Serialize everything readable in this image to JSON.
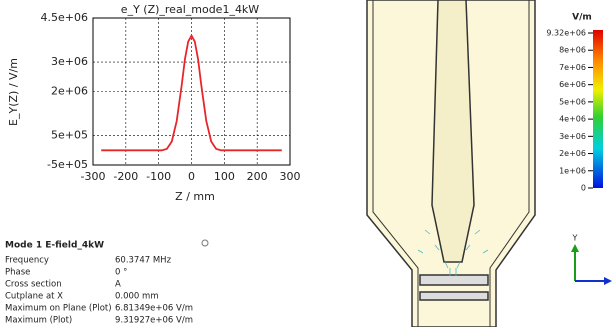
{
  "chart_data": {
    "type": "line",
    "title": "e_Y (Z)_real_mode1_4kW",
    "x_label": "Z / mm",
    "y_label": "E_Y(Z) / V/m",
    "x": [
      -275,
      -200,
      -125,
      -90,
      -75,
      -60,
      -45,
      -30,
      -20,
      -10,
      0,
      10,
      20,
      30,
      45,
      60,
      75,
      90,
      125,
      200,
      275
    ],
    "series": [
      {
        "name": "e_Y (Z)_real_mode1_4kW",
        "color": "#e8262a",
        "values": [
          0,
          0,
          0,
          0,
          50000,
          300000,
          1000000,
          2200000,
          3100000,
          3700000,
          3900000,
          3700000,
          3100000,
          2200000,
          1000000,
          300000,
          50000,
          0,
          0,
          0,
          0
        ]
      }
    ],
    "xlim": [
      -300,
      300
    ],
    "xticks": [
      -300,
      -200,
      -100,
      0,
      100,
      200,
      300
    ],
    "ylim": [
      -500000,
      4500000
    ],
    "yticks": [
      {
        "value": -500000,
        "label": "-5e+05"
      },
      {
        "value": 500000,
        "label": "5e+05"
      },
      {
        "value": 2000000,
        "label": "2e+06"
      },
      {
        "value": 3000000,
        "label": "3e+06"
      },
      {
        "value": 4500000,
        "label": "4.5e+06"
      }
    ],
    "grid": true
  },
  "info_panel": {
    "title": "Mode 1 E-field_4kW",
    "rows": [
      [
        "Frequency",
        "60.3747 MHz"
      ],
      [
        "Phase",
        "0 °"
      ],
      [
        "Cross section",
        "A"
      ],
      [
        "Cutplane at X",
        "0.000 mm"
      ],
      [
        "Maximum on Plane (Plot)",
        "6.81349e+06 V/m"
      ],
      [
        "Maximum (Plot)",
        "9.31927e+06 V/m"
      ]
    ]
  },
  "color_legend": {
    "unit": "V/m",
    "labels": [
      "9.32e+06",
      "8e+06",
      "7e+06",
      "6e+06",
      "5e+06",
      "4e+06",
      "3e+06",
      "2e+06",
      "1e+06",
      "0"
    ]
  },
  "triad": {
    "axis_label": "Y"
  }
}
